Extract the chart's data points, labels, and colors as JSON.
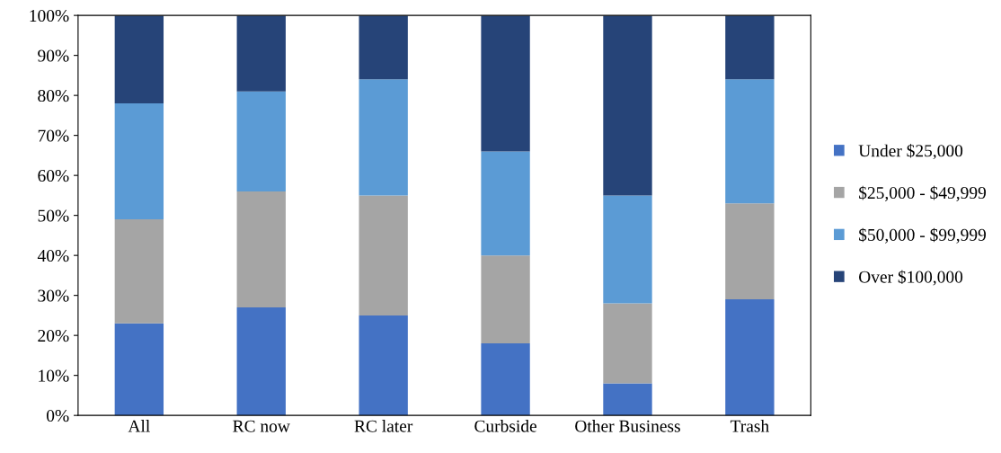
{
  "chart_data": {
    "type": "bar",
    "stacked": true,
    "categories": [
      "All",
      "RC now",
      "RC later",
      "Curbside",
      "Other Business",
      "Trash"
    ],
    "series": [
      {
        "name": "Under $25,000",
        "color": "#4472c4",
        "values": [
          23,
          27,
          25,
          18,
          8,
          29
        ]
      },
      {
        "name": "$25,000 - $49,999",
        "color": "#a5a5a5",
        "values": [
          26,
          29,
          30,
          22,
          20,
          24
        ]
      },
      {
        "name": "$50,000 - $99,999",
        "color": "#5b9bd5",
        "values": [
          29,
          25,
          29,
          26,
          27,
          31
        ]
      },
      {
        "name": "Over $100,000",
        "color": "#264478",
        "values": [
          22,
          19,
          16,
          34,
          45,
          16
        ]
      }
    ],
    "ylim": [
      0,
      100
    ],
    "yticks": [
      {
        "value": 0,
        "label": "0%"
      },
      {
        "value": 10,
        "label": "10%"
      },
      {
        "value": 20,
        "label": "20%"
      },
      {
        "value": 30,
        "label": "30%"
      },
      {
        "value": 40,
        "label": "40%"
      },
      {
        "value": 50,
        "label": "50%"
      },
      {
        "value": 60,
        "label": "60%"
      },
      {
        "value": 70,
        "label": "70%"
      },
      {
        "value": 80,
        "label": "80%"
      },
      {
        "value": 90,
        "label": "90%"
      },
      {
        "value": 100,
        "label": "100%"
      }
    ],
    "grid": false,
    "legend": "right"
  }
}
